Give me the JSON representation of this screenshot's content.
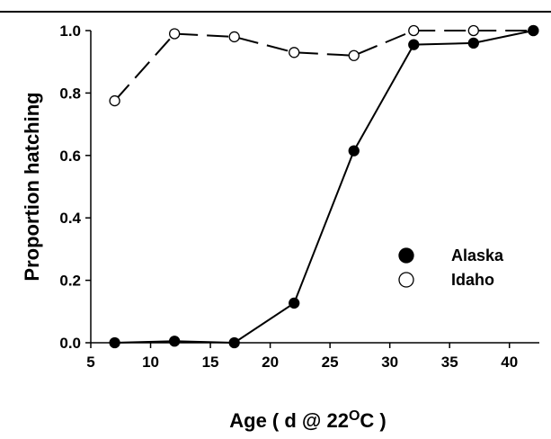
{
  "chart_data": {
    "type": "line",
    "title": "",
    "xlabel_parts": [
      "Age ( d @ 22",
      "O",
      "C )"
    ],
    "ylabel": "Proportion hatching",
    "xlim": [
      5,
      42.5
    ],
    "ylim": [
      0,
      1.0
    ],
    "xticks": [
      5,
      10,
      15,
      20,
      25,
      30,
      35,
      40
    ],
    "yticks": [
      "0.0",
      "0.2",
      "0.4",
      "0.6",
      "0.8",
      "1.0"
    ],
    "grid": false,
    "legend_position": "right-middle",
    "series": [
      {
        "name": "Alaska",
        "marker": "filled-circle",
        "line": "solid",
        "color": "#000000",
        "points": [
          [
            7,
            0.0
          ],
          [
            12,
            0.005
          ],
          [
            17,
            0.0
          ],
          [
            22,
            0.127
          ],
          [
            27,
            0.615
          ],
          [
            32,
            0.955
          ],
          [
            37,
            0.96
          ],
          [
            42,
            1.0
          ]
        ]
      },
      {
        "name": "Idaho",
        "marker": "open-circle",
        "line": "dashed",
        "color": "#000000",
        "points": [
          [
            7,
            0.775
          ],
          [
            12,
            0.99
          ],
          [
            17,
            0.98
          ],
          [
            22,
            0.93
          ],
          [
            27,
            0.92
          ],
          [
            32,
            1.0
          ],
          [
            37,
            1.0
          ],
          [
            42,
            1.0
          ]
        ]
      }
    ]
  }
}
